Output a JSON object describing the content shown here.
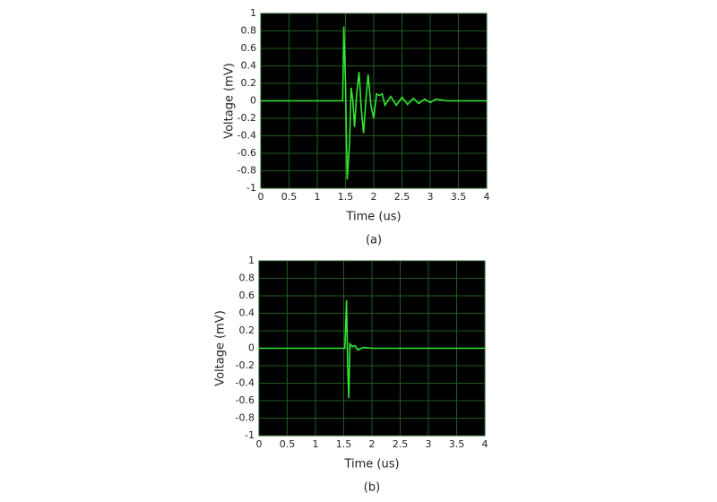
{
  "chart_data": [
    {
      "type": "line",
      "caption": "(a)",
      "x_label": "Time (us)",
      "y_label": "Voltage (mV)",
      "x": [
        0,
        1.45,
        1.47,
        1.5,
        1.53,
        1.57,
        1.6,
        1.63,
        1.66,
        1.7,
        1.74,
        1.78,
        1.82,
        1.86,
        1.9,
        1.95,
        2.0,
        2.05,
        2.1,
        2.15,
        2.2,
        2.3,
        2.4,
        2.5,
        2.6,
        2.7,
        2.8,
        2.9,
        3.0,
        3.1,
        3.3,
        4
      ],
      "values": [
        0,
        0,
        0.85,
        0.2,
        -0.9,
        -0.5,
        0.15,
        0,
        -0.3,
        0.1,
        0.33,
        -0.1,
        -0.37,
        0,
        0.3,
        -0.05,
        -0.2,
        0.08,
        0.06,
        0.08,
        -0.05,
        0.05,
        -0.05,
        0.04,
        -0.04,
        0.03,
        -0.03,
        0.02,
        -0.02,
        0.02,
        0,
        0
      ],
      "color": "#33e633",
      "grid": true,
      "xlim": [
        0,
        4
      ],
      "xticks": [
        0,
        0.5,
        1,
        1.5,
        2,
        2.5,
        3,
        3.5,
        4
      ],
      "ylim": [
        -1,
        1
      ],
      "yticks": [
        -1,
        -0.8,
        -0.6,
        -0.4,
        -0.2,
        0,
        0.2,
        0.4,
        0.6,
        0.8,
        1
      ]
    },
    {
      "type": "line",
      "caption": "(b)",
      "x_label": "Time (us)",
      "y_label": "Voltage (mV)",
      "x": [
        0,
        1.52,
        1.55,
        1.57,
        1.59,
        1.61,
        1.65,
        1.7,
        1.75,
        1.85,
        2.0,
        4
      ],
      "values": [
        0,
        0,
        0.55,
        -0.2,
        -0.57,
        0.05,
        0.02,
        0.03,
        -0.02,
        0.01,
        0,
        0
      ],
      "color": "#33e633",
      "grid": true,
      "xlim": [
        0,
        4
      ],
      "xticks": [
        0,
        0.5,
        1,
        1.5,
        2,
        2.5,
        3,
        3.5,
        4
      ],
      "ylim": [
        -1,
        1
      ],
      "yticks": [
        -1,
        -0.8,
        -0.6,
        -0.4,
        -0.2,
        0,
        0.2,
        0.4,
        0.6,
        0.8,
        1
      ]
    }
  ]
}
